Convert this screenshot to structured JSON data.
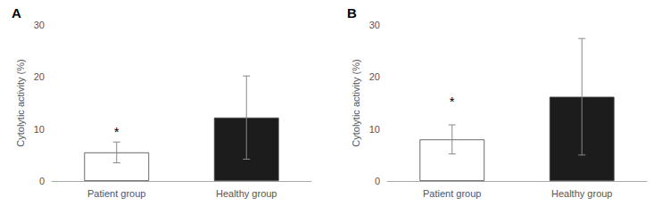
{
  "chart_data": [
    {
      "type": "bar",
      "title": "A",
      "categories": [
        "Patient group",
        "Healthy group"
      ],
      "values": [
        5.5,
        12.2
      ],
      "errors": [
        2.0,
        8.0
      ],
      "colors": [
        "white",
        "#1c1c1c"
      ],
      "ylabel": "Cytolytic activity (%)",
      "ylim": [
        0,
        30
      ],
      "yticks": [
        0,
        10,
        20,
        30
      ],
      "grid": false,
      "annotations": [
        {
          "text": "*",
          "x": "Patient group",
          "y": 8.2
        }
      ]
    },
    {
      "type": "bar",
      "title": "B",
      "categories": [
        "Patient group",
        "Healthy group"
      ],
      "values": [
        8.0,
        16.2
      ],
      "errors": [
        2.8,
        11.2
      ],
      "colors": [
        "white",
        "#1c1c1c"
      ],
      "ylabel": "Cytolytic activity (%)",
      "ylim": [
        0,
        30
      ],
      "yticks": [
        0,
        10,
        20,
        30
      ],
      "grid": false,
      "annotations": [
        {
          "text": "*",
          "x": "Patient group",
          "y": 14.0
        }
      ]
    }
  ]
}
